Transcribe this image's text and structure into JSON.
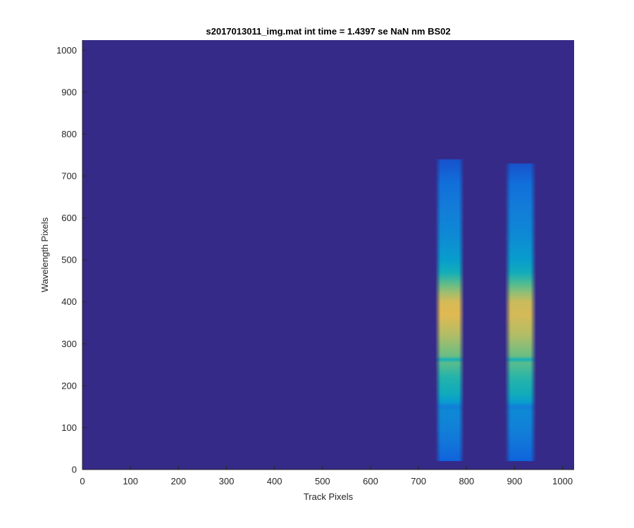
{
  "chart_data": {
    "type": "heatmap",
    "title": "s2017013011_img.mat int time = 1.4397 se  NaN nm BS02",
    "xlabel": "Track Pixels",
    "ylabel": "Wavelength Pixels",
    "xlim": [
      0,
      1024
    ],
    "ylim": [
      0,
      1024
    ],
    "xticks": [
      0,
      100,
      200,
      300,
      400,
      500,
      600,
      700,
      800,
      900,
      1000
    ],
    "yticks": [
      0,
      100,
      200,
      300,
      400,
      500,
      600,
      700,
      800,
      900,
      1000
    ],
    "grid": false,
    "colormap": "parula",
    "background_color": "#352A87",
    "bands": [
      {
        "x_range": [
          735,
          795
        ],
        "y_range": [
          20,
          740
        ],
        "profile": [
          {
            "y": 20,
            "v": 0.18
          },
          {
            "y": 60,
            "v": 0.26
          },
          {
            "y": 100,
            "v": 0.32
          },
          {
            "y": 140,
            "v": 0.36
          },
          {
            "y": 150,
            "v": 0.3
          },
          {
            "y": 160,
            "v": 0.44
          },
          {
            "y": 180,
            "v": 0.55
          },
          {
            "y": 220,
            "v": 0.62
          },
          {
            "y": 255,
            "v": 0.7
          },
          {
            "y": 262,
            "v": 0.58
          },
          {
            "y": 270,
            "v": 0.72
          },
          {
            "y": 320,
            "v": 0.82
          },
          {
            "y": 370,
            "v": 0.9
          },
          {
            "y": 400,
            "v": 0.88
          },
          {
            "y": 420,
            "v": 0.8
          },
          {
            "y": 440,
            "v": 0.72
          },
          {
            "y": 470,
            "v": 0.58
          },
          {
            "y": 500,
            "v": 0.46
          },
          {
            "y": 560,
            "v": 0.36
          },
          {
            "y": 620,
            "v": 0.3
          },
          {
            "y": 680,
            "v": 0.24
          },
          {
            "y": 740,
            "v": 0.12
          }
        ]
      },
      {
        "x_range": [
          880,
          945
        ],
        "y_range": [
          20,
          730
        ],
        "profile": [
          {
            "y": 20,
            "v": 0.18
          },
          {
            "y": 60,
            "v": 0.26
          },
          {
            "y": 100,
            "v": 0.32
          },
          {
            "y": 140,
            "v": 0.36
          },
          {
            "y": 150,
            "v": 0.3
          },
          {
            "y": 160,
            "v": 0.46
          },
          {
            "y": 180,
            "v": 0.56
          },
          {
            "y": 220,
            "v": 0.63
          },
          {
            "y": 255,
            "v": 0.7
          },
          {
            "y": 262,
            "v": 0.58
          },
          {
            "y": 270,
            "v": 0.72
          },
          {
            "y": 320,
            "v": 0.82
          },
          {
            "y": 370,
            "v": 0.88
          },
          {
            "y": 400,
            "v": 0.86
          },
          {
            "y": 420,
            "v": 0.78
          },
          {
            "y": 440,
            "v": 0.7
          },
          {
            "y": 470,
            "v": 0.56
          },
          {
            "y": 500,
            "v": 0.46
          },
          {
            "y": 560,
            "v": 0.36
          },
          {
            "y": 620,
            "v": 0.3
          },
          {
            "y": 680,
            "v": 0.24
          },
          {
            "y": 730,
            "v": 0.12
          }
        ]
      }
    ]
  }
}
